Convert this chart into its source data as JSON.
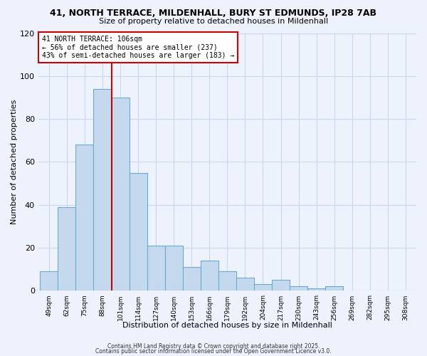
{
  "title": "41, NORTH TERRACE, MILDENHALL, BURY ST EDMUNDS, IP28 7AB",
  "subtitle": "Size of property relative to detached houses in Mildenhall",
  "xlabel": "Distribution of detached houses by size in Mildenhall",
  "ylabel": "Number of detached properties",
  "bar_values": [
    9,
    39,
    68,
    94,
    90,
    55,
    21,
    21,
    11,
    14,
    9,
    6,
    3,
    5,
    2,
    1,
    2
  ],
  "bar_color": "#c4d9ee",
  "bar_edge_color": "#6aaad4",
  "bar_width": 1.0,
  "vline_x": 4.0,
  "vline_color": "#cc0000",
  "ylim": [
    0,
    120
  ],
  "yticks": [
    0,
    20,
    40,
    60,
    80,
    100,
    120
  ],
  "annotation_title": "41 NORTH TERRACE: 106sqm",
  "annotation_line1": "← 56% of detached houses are smaller (237)",
  "annotation_line2": "43% of semi-detached houses are larger (183) →",
  "annotation_box_color": "#cc0000",
  "background_color": "#eef2fc",
  "grid_color": "#c8d8ee",
  "footer1": "Contains HM Land Registry data © Crown copyright and database right 2025.",
  "footer2": "Contains public sector information licensed under the Open Government Licence v3.0.",
  "all_labels": [
    "49sqm",
    "62sqm",
    "75sqm",
    "88sqm",
    "101sqm",
    "114sqm",
    "127sqm",
    "140sqm",
    "153sqm",
    "166sqm",
    "179sqm",
    "192sqm",
    "204sqm",
    "217sqm",
    "230sqm",
    "243sqm",
    "256sqm",
    "269sqm",
    "282sqm",
    "295sqm",
    "308sqm"
  ]
}
